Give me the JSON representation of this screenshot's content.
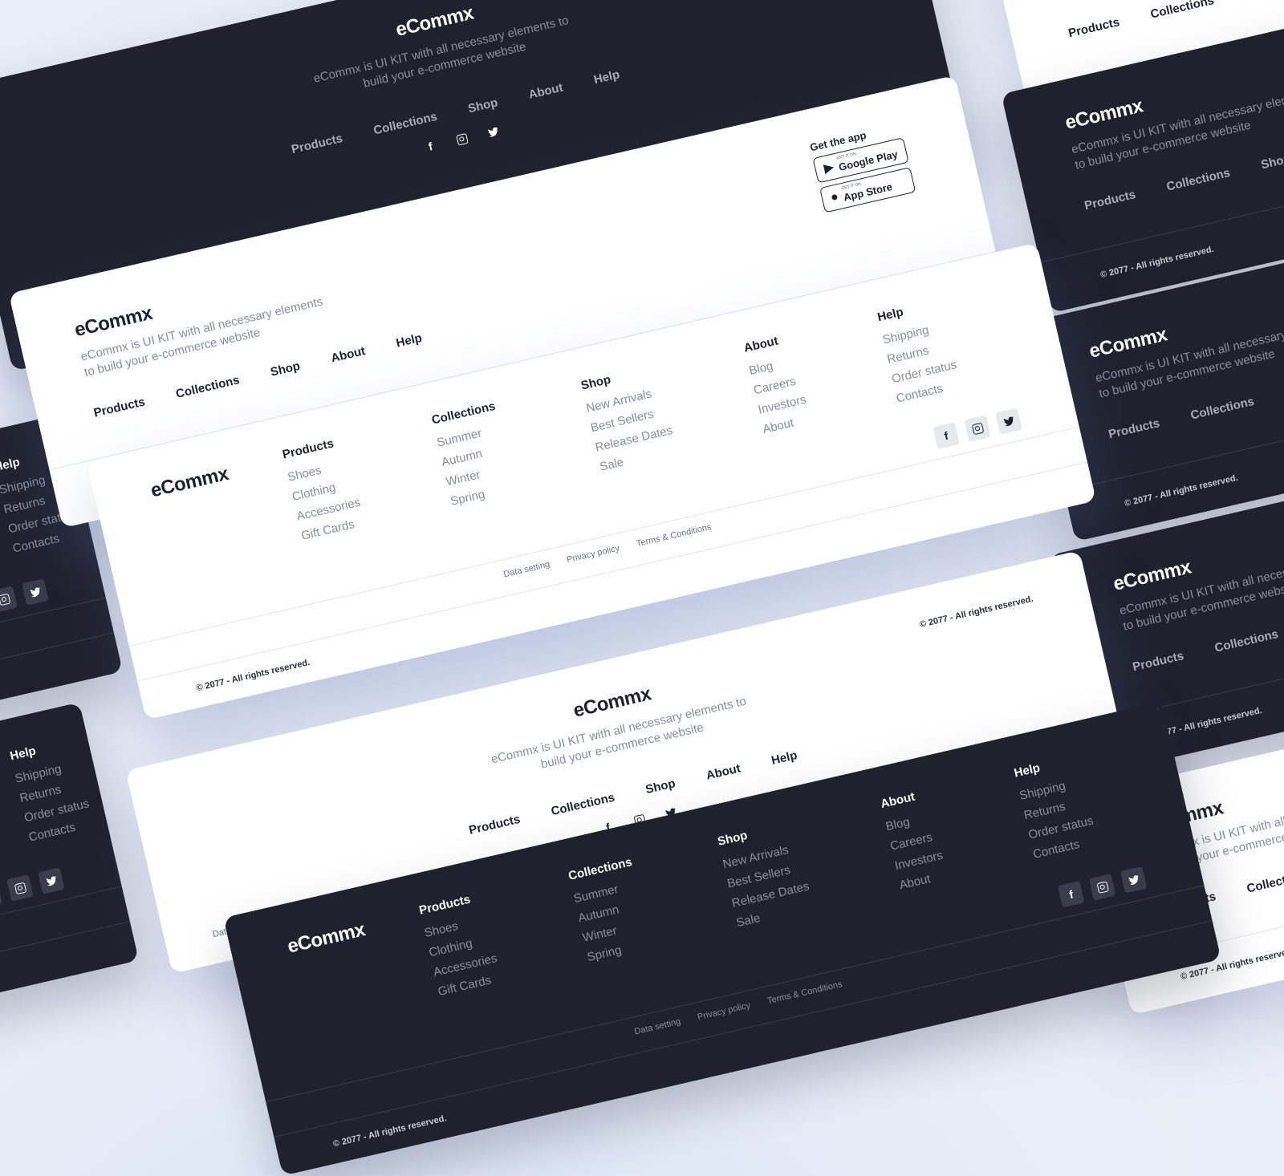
{
  "brand": {
    "name": "eCommx",
    "tagline": "eCommx is UI KIT with all necessary elements to build your e-commerce website"
  },
  "nav": [
    "Products",
    "Collections",
    "Shop",
    "About",
    "Help"
  ],
  "columns": [
    {
      "title": "Products",
      "items": [
        "Shoes",
        "Clothing",
        "Accessories",
        "Gift Cards"
      ]
    },
    {
      "title": "Collections",
      "items": [
        "Summer",
        "Autumn",
        "Winter",
        "Spring"
      ]
    },
    {
      "title": "Shop",
      "items": [
        "New Arrivals",
        "Best Sellers",
        "Release Dates",
        "Sale"
      ]
    },
    {
      "title": "About",
      "items": [
        "Blog",
        "Careers",
        "Investors",
        "About"
      ]
    },
    {
      "title": "Help",
      "items": [
        "Shipping",
        "Returns",
        "Order status",
        "Contacts"
      ]
    }
  ],
  "legal": [
    "Data setting",
    "Privacy policy",
    "Terms & Conditions"
  ],
  "copyright": "© 2077 - All rights reserved.",
  "app": {
    "title": "Get the app",
    "google": {
      "small": "GET IT ON",
      "label": "Google Play"
    },
    "apple": {
      "small": "GET IT ON",
      "label": "App Store"
    }
  },
  "social": [
    "facebook-icon",
    "instagram-icon",
    "twitter-icon"
  ],
  "colors": {
    "dark": "#1f212d",
    "light": "#ffffff",
    "background": "#e6ecf7",
    "icon_box": "#e8e9ee"
  }
}
